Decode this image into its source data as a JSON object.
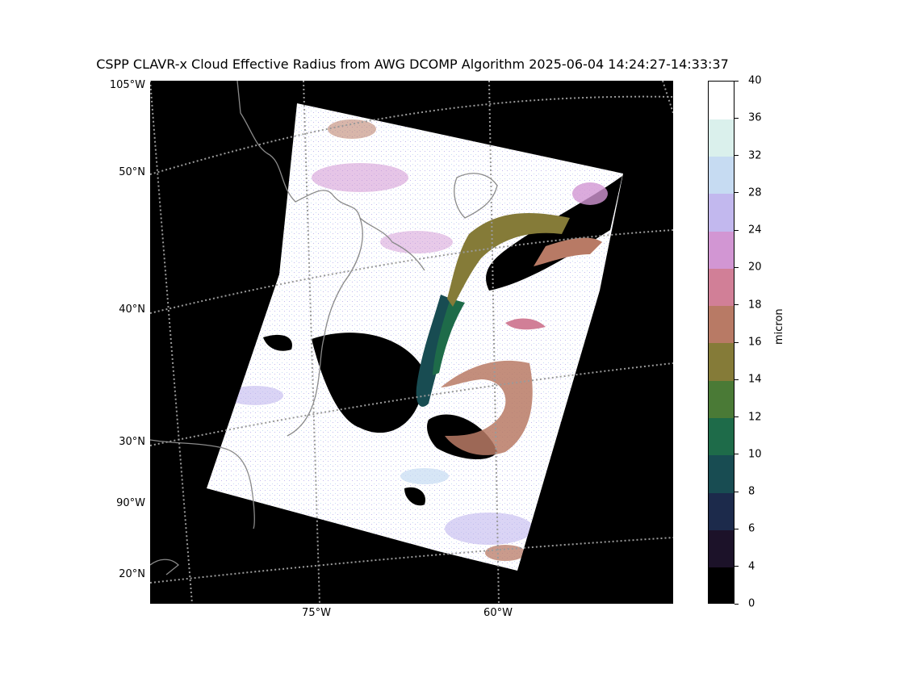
{
  "title": "CSPP CLAVR-x Cloud Effective Radius from AWG DCOMP Algorithm 2025-06-04 14:24:27-14:33:37",
  "map": {
    "lat_labels": [
      "105°W",
      "50°N",
      "40°N",
      "30°N",
      "90°W",
      "20°N"
    ],
    "lon_labels": [
      "75°W",
      "60°W"
    ],
    "background_color": "#000000",
    "graticule_color": "#9a9a9a",
    "coastline_color": "#8a8a8a"
  },
  "colorbar": {
    "label": "micron",
    "tick_labels": [
      "0",
      "4",
      "6",
      "8",
      "10",
      "12",
      "14",
      "16",
      "18",
      "20",
      "24",
      "28",
      "32",
      "36",
      "40"
    ],
    "bounds": [
      0,
      4,
      6,
      8,
      10,
      12,
      14,
      16,
      18,
      20,
      24,
      28,
      32,
      36,
      40
    ],
    "colors": [
      "#000000",
      "#1c1229",
      "#1c2a4b",
      "#184c52",
      "#1e6b49",
      "#4a7a36",
      "#857b38",
      "#b87a65",
      "#d17f97",
      "#d296d3",
      "#c2b8ee",
      "#c6dbf2",
      "#daf0ec",
      "#ffffff"
    ]
  }
}
